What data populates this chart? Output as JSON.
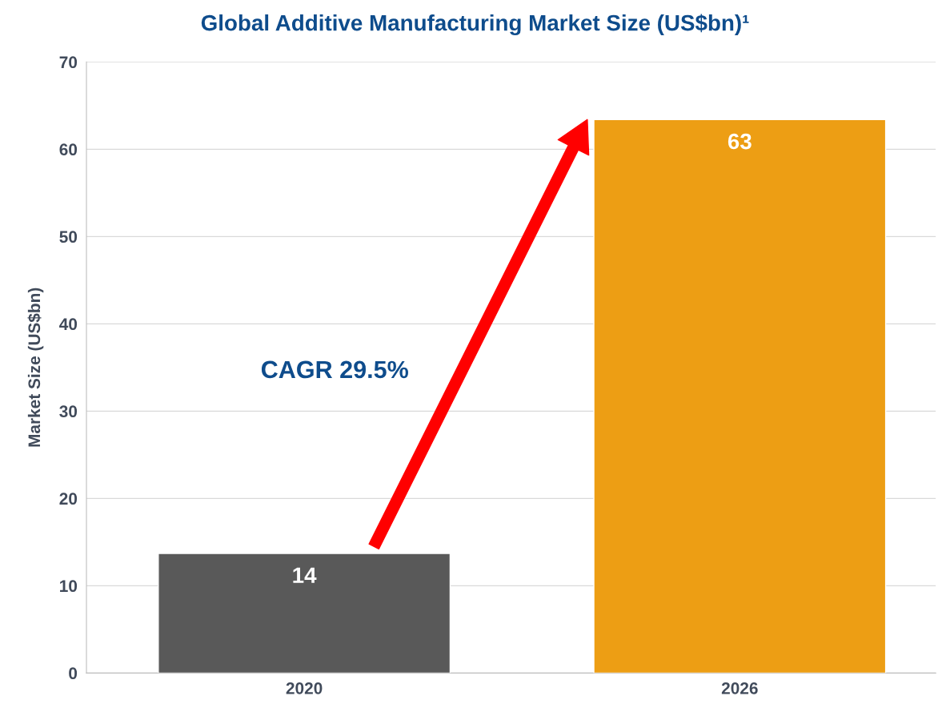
{
  "chart_data": {
    "type": "bar",
    "title": "Global Additive Manufacturing Market Size (US$bn)¹",
    "ylabel": "Market Size (US$bn)",
    "categories": [
      "2020",
      "2026"
    ],
    "values": [
      13.7,
      63.4
    ],
    "colors": [
      "#595959",
      "#ed9e14"
    ],
    "value_labels": [
      "14",
      "63"
    ],
    "ylim": [
      0,
      70
    ],
    "yticks": [
      0,
      10,
      20,
      30,
      40,
      50,
      60,
      70
    ],
    "grid": "y",
    "annotations": [
      "CAGR 29.5%"
    ]
  }
}
